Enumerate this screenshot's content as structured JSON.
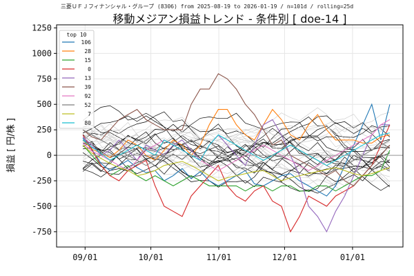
{
  "header": {
    "suptitle": "三菱ＵＦＪフィナンシャル・グループ (8306) from 2025-08-19 to 2026-01-19 / n=101d / rolling=25d",
    "title": "移動メジアン損益トレンド - 条件別 [ doe-14 ]"
  },
  "chart_data": {
    "type": "line",
    "title": "移動メジアン損益トレンド - 条件別 [ doe-14 ]",
    "ylabel": "損益 [ 円/株 ]",
    "xlabel": "",
    "x_ticks": [
      "09/01",
      "10/01",
      "11/01",
      "12/01",
      "01/01"
    ],
    "y_ticks": [
      -750,
      -500,
      -250,
      0,
      250,
      500,
      750,
      1000,
      1250
    ],
    "ylim": [
      -900,
      1280
    ],
    "xlim": [
      "2025-08-19",
      "2026-01-24"
    ],
    "x_start": "2025-08-31",
    "x_end": "2026-01-18",
    "grid": true,
    "legend": {
      "title": "top 10",
      "position": "top-left"
    },
    "series": [
      {
        "name": "106",
        "color": "#1f77b4",
        "values": [
          170,
          60,
          -80,
          -150,
          -100,
          -50,
          -120,
          -170,
          -150,
          -250,
          -200,
          -130,
          -230,
          -160,
          -250,
          -300,
          -250,
          -200,
          -150,
          -280,
          -300,
          -250,
          -200,
          -180,
          -250,
          -300,
          -350,
          -400,
          -300,
          -100,
          100,
          300,
          500,
          150,
          500
        ]
      },
      {
        "name": "28",
        "color": "#ff7f0e",
        "values": [
          150,
          60,
          20,
          -20,
          50,
          150,
          100,
          0,
          -50,
          50,
          150,
          100,
          0,
          100,
          300,
          450,
          450,
          300,
          200,
          150,
          300,
          450,
          350,
          200,
          150,
          300,
          400,
          250,
          150,
          150,
          150,
          120,
          120,
          180,
          200
        ]
      },
      {
        "name": "15",
        "color": "#2ca02c",
        "values": [
          100,
          0,
          -100,
          -200,
          -150,
          -100,
          -200,
          -250,
          -200,
          -250,
          -300,
          -250,
          -200,
          -250,
          -300,
          -300,
          -300,
          -300,
          -350,
          -300,
          -300,
          -350,
          -300,
          -300,
          -350,
          -350,
          -300,
          -300,
          -350,
          -300,
          -250,
          -200,
          -200,
          -150,
          50
        ]
      },
      {
        "name": "0",
        "color": "#d62728",
        "values": [
          200,
          50,
          -100,
          -200,
          -250,
          -150,
          -100,
          -50,
          -300,
          -500,
          -550,
          -600,
          -400,
          -300,
          -200,
          -100,
          -300,
          -400,
          -450,
          -350,
          -300,
          -450,
          -500,
          -750,
          -600,
          -400,
          -450,
          -500,
          -400,
          -350,
          -300,
          -200,
          -100,
          100,
          300
        ]
      },
      {
        "name": "13",
        "color": "#9467bd",
        "values": [
          180,
          100,
          0,
          50,
          150,
          50,
          -50,
          100,
          50,
          0,
          100,
          150,
          50,
          -50,
          100,
          200,
          100,
          0,
          -100,
          100,
          300,
          350,
          200,
          0,
          -200,
          -500,
          -600,
          -750,
          -550,
          -400,
          -200,
          0,
          200,
          300,
          300
        ]
      },
      {
        "name": "39",
        "color": "#8c564b",
        "values": [
          250,
          180,
          150,
          250,
          350,
          400,
          450,
          350,
          300,
          250,
          250,
          250,
          500,
          650,
          650,
          800,
          750,
          650,
          500,
          400,
          250,
          100,
          150,
          0,
          -50,
          -100,
          -150,
          -200,
          -150,
          -250,
          -300,
          -200,
          -100,
          0,
          100
        ]
      },
      {
        "name": "92",
        "color": "#e377c2",
        "values": [
          120,
          40,
          0,
          -50,
          -100,
          -150,
          -50,
          50,
          100,
          150,
          100,
          50,
          0,
          -50,
          -100,
          -150,
          -100,
          -50,
          0,
          50,
          100,
          50,
          0,
          -50,
          -100,
          -150,
          -100,
          -50,
          0,
          50,
          100,
          150,
          200,
          300,
          350
        ]
      },
      {
        "name": "52",
        "color": "#7f7f7f",
        "values": [
          250,
          200,
          150,
          100,
          50,
          0,
          -50,
          -100,
          -50,
          0,
          50,
          100,
          150,
          100,
          50,
          0,
          -50,
          -100,
          -150,
          -100,
          -50,
          0,
          50,
          100,
          50,
          0,
          -50,
          -100,
          -150,
          -100,
          -50,
          0,
          50,
          100,
          150
        ]
      },
      {
        "name": "7",
        "color": "#bcbd22",
        "values": [
          100,
          20,
          -30,
          -80,
          -120,
          -150,
          -200,
          -180,
          -150,
          -100,
          -80,
          -60,
          -100,
          -150,
          -200,
          -250,
          -220,
          -200,
          -180,
          -160,
          -150,
          -200,
          -250,
          -220,
          -200,
          -180,
          -160,
          -140,
          -120,
          -150,
          -180,
          -200,
          -180,
          -150,
          -120
        ]
      },
      {
        "name": "80",
        "color": "#17becf",
        "values": [
          150,
          80,
          20,
          -50,
          0,
          50,
          100,
          50,
          0,
          150,
          100,
          50,
          0,
          -50,
          100,
          200,
          150,
          100,
          50,
          0,
          -50,
          0,
          50,
          100,
          50,
          0,
          -50,
          -100,
          -50,
          0,
          50,
          100,
          150,
          200,
          220
        ]
      }
    ],
    "background_series_count": 30
  }
}
